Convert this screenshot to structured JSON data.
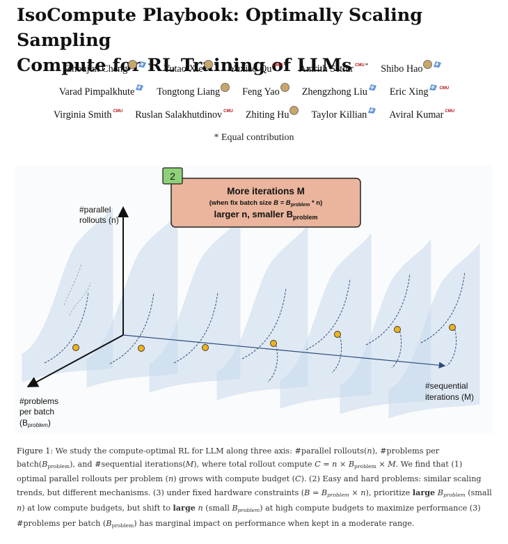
{
  "paper": {
    "title_line1": "IsoCompute Playbook: Optimally Scaling Sampling",
    "title_line2": "Compute for RL Training of LLMs",
    "equal_contribution": "* Equal contribution",
    "affiliation_mark": "CMU",
    "authors_rows": [
      [
        {
          "name": "Zhoujun Cheng",
          "icons": [
            "avatar",
            "flag"
          ],
          "star": true
        },
        {
          "name": "Yutao Xie",
          "icons": [
            "avatar"
          ],
          "star": true
        },
        {
          "name": "Yuxiao Qu",
          "icons": [
            "cmu"
          ],
          "star": true
        },
        {
          "name": "Amrith Setlur",
          "icons": [
            "cmu"
          ],
          "star": true
        },
        {
          "name": "Shibo Hao",
          "icons": [
            "avatar",
            "flag"
          ],
          "star": false
        }
      ],
      [
        {
          "name": "Varad Pimpalkhute",
          "icons": [
            "flag"
          ],
          "star": false
        },
        {
          "name": "Tongtong Liang",
          "icons": [
            "avatar"
          ],
          "star": false
        },
        {
          "name": "Feng Yao",
          "icons": [
            "avatar"
          ],
          "star": false
        },
        {
          "name": "Zhengzhong Liu",
          "icons": [
            "flag"
          ],
          "star": false
        },
        {
          "name": "Eric Xing",
          "icons": [
            "flag",
            "cmu"
          ],
          "star": false
        }
      ],
      [
        {
          "name": "Virginia Smith",
          "icons": [
            "cmu"
          ],
          "star": false
        },
        {
          "name": "Ruslan Salakhutdinov",
          "icons": [
            "cmu"
          ],
          "star": false
        },
        {
          "name": "Zhiting Hu",
          "icons": [
            "avatar"
          ],
          "star": false
        },
        {
          "name": "Taylor Killian",
          "icons": [
            "flag"
          ],
          "star": false
        },
        {
          "name": "Aviral Kumar",
          "icons": [
            "cmu"
          ],
          "star": false
        }
      ]
    ]
  },
  "figure": {
    "badge": "2",
    "box_title": "More iterations M",
    "box_sub_prefix": "(when fix batch size ",
    "box_sub_formula": "B = B",
    "box_sub_subscript": "problem",
    "box_sub_suffix": " * n)",
    "box_line3_prefix": "larger n, smaller B",
    "box_line3_subscript": "problem",
    "axis_parallel_1": "#parallel",
    "axis_parallel_2": "rollouts (n)",
    "axis_problems_1": "#problems",
    "axis_problems_2": "per batch",
    "axis_problems_3": "(B",
    "axis_problems_sub": "problem",
    "axis_problems_close": ")",
    "axis_seq_1": "#sequential",
    "axis_seq_2": "iterations (M)",
    "colors": {
      "panel": "#c9dcee",
      "curve": "#2b4a7a",
      "dot": "#f0b21c",
      "box": "#eab59c",
      "badge": "#8fd17a"
    }
  },
  "caption": {
    "label": "Figure 1:",
    "t1": " We study the compute-optimal RL for LLM along three axis: #parallel rollouts(",
    "t2": "), #problems per batch(",
    "t3": "), and #sequential iterations(",
    "t4": "), where total rollout compute ",
    "t5": ". We find that (1) optimal parallel rollouts per problem (",
    "t6": ") grows with  compute budget (",
    "t7": "). (2) Easy and hard problems: similar scaling trends, but different mechanisms. (3) under fixed hardware constraints (",
    "t8": "), prioritize ",
    "large": "large",
    "t9": " (small ",
    "t10": ") at low compute budgets, but shift to ",
    "t11": " (small ",
    "t12": ") at high compute budgets to maximize performance (3) #problems per batch (",
    "t13": ") has marginal impact on performance when kept in a moderate range.",
    "sym_n": "n",
    "sym_B": "B",
    "sym_problem": "problem",
    "sym_M": "M",
    "sym_C": "C",
    "eq_compute": "C = n × B",
    "eq_compute_end": " × M",
    "eq_hw": "B = B",
    "eq_hw_end": " × n"
  }
}
